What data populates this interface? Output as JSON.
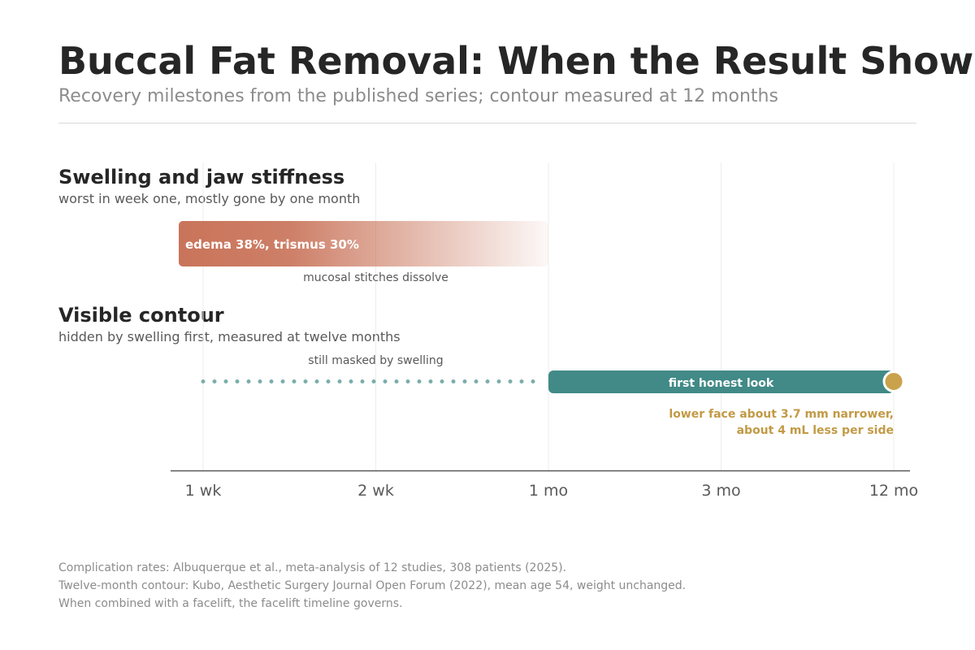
{
  "header": {
    "title": "Buccal Fat Removal: When the Result Shows",
    "subtitle": "Recovery milestones from the published series; contour measured at 12 months"
  },
  "chart_data": {
    "type": "timeline",
    "axis": {
      "ticks": [
        "1 wk",
        "2 wk",
        "1 mo",
        "3 mo",
        "12 mo"
      ],
      "scale": "categorical-log-like"
    },
    "tracks": [
      {
        "title": "Swelling and jaw stiffness",
        "subtitle": "worst in week one, mostly gone by one month",
        "bar": {
          "start": "1 wk",
          "end": "1 mo",
          "label": "edema 38%, trismus 30%",
          "style": "fading gradient"
        },
        "note": "mucosal stitches dissolve"
      },
      {
        "title": "Visible contour",
        "subtitle": "hidden by swelling first, measured at twelve months",
        "dotted": {
          "start": "1 wk",
          "end": "1 mo",
          "label": "still masked by swelling"
        },
        "bar": {
          "start": "1 mo",
          "end": "12 mo",
          "label": "first honest look"
        },
        "endpoint": "12 mo",
        "annotation": [
          "lower face about 3.7 mm narrower,",
          "about 4 mL less per side"
        ]
      }
    ]
  },
  "colors": {
    "swelling_bar": "#c9745a",
    "contour_bar": "#418a87",
    "dotted_line": "#7aaeac",
    "endpoint_marker": "#c9a24b",
    "annotation_text": "#c29a45",
    "axis": "#595959",
    "gridline": "#ececec"
  },
  "footnotes": [
    "Complication rates: Albuquerque et al., meta-analysis of 12 studies, 308 patients (2025).",
    "Twelve-month contour: Kubo, Aesthetic Surgery Journal Open Forum (2022), mean age 54, weight unchanged.",
    "When combined with a facelift, the facelift timeline governs."
  ]
}
